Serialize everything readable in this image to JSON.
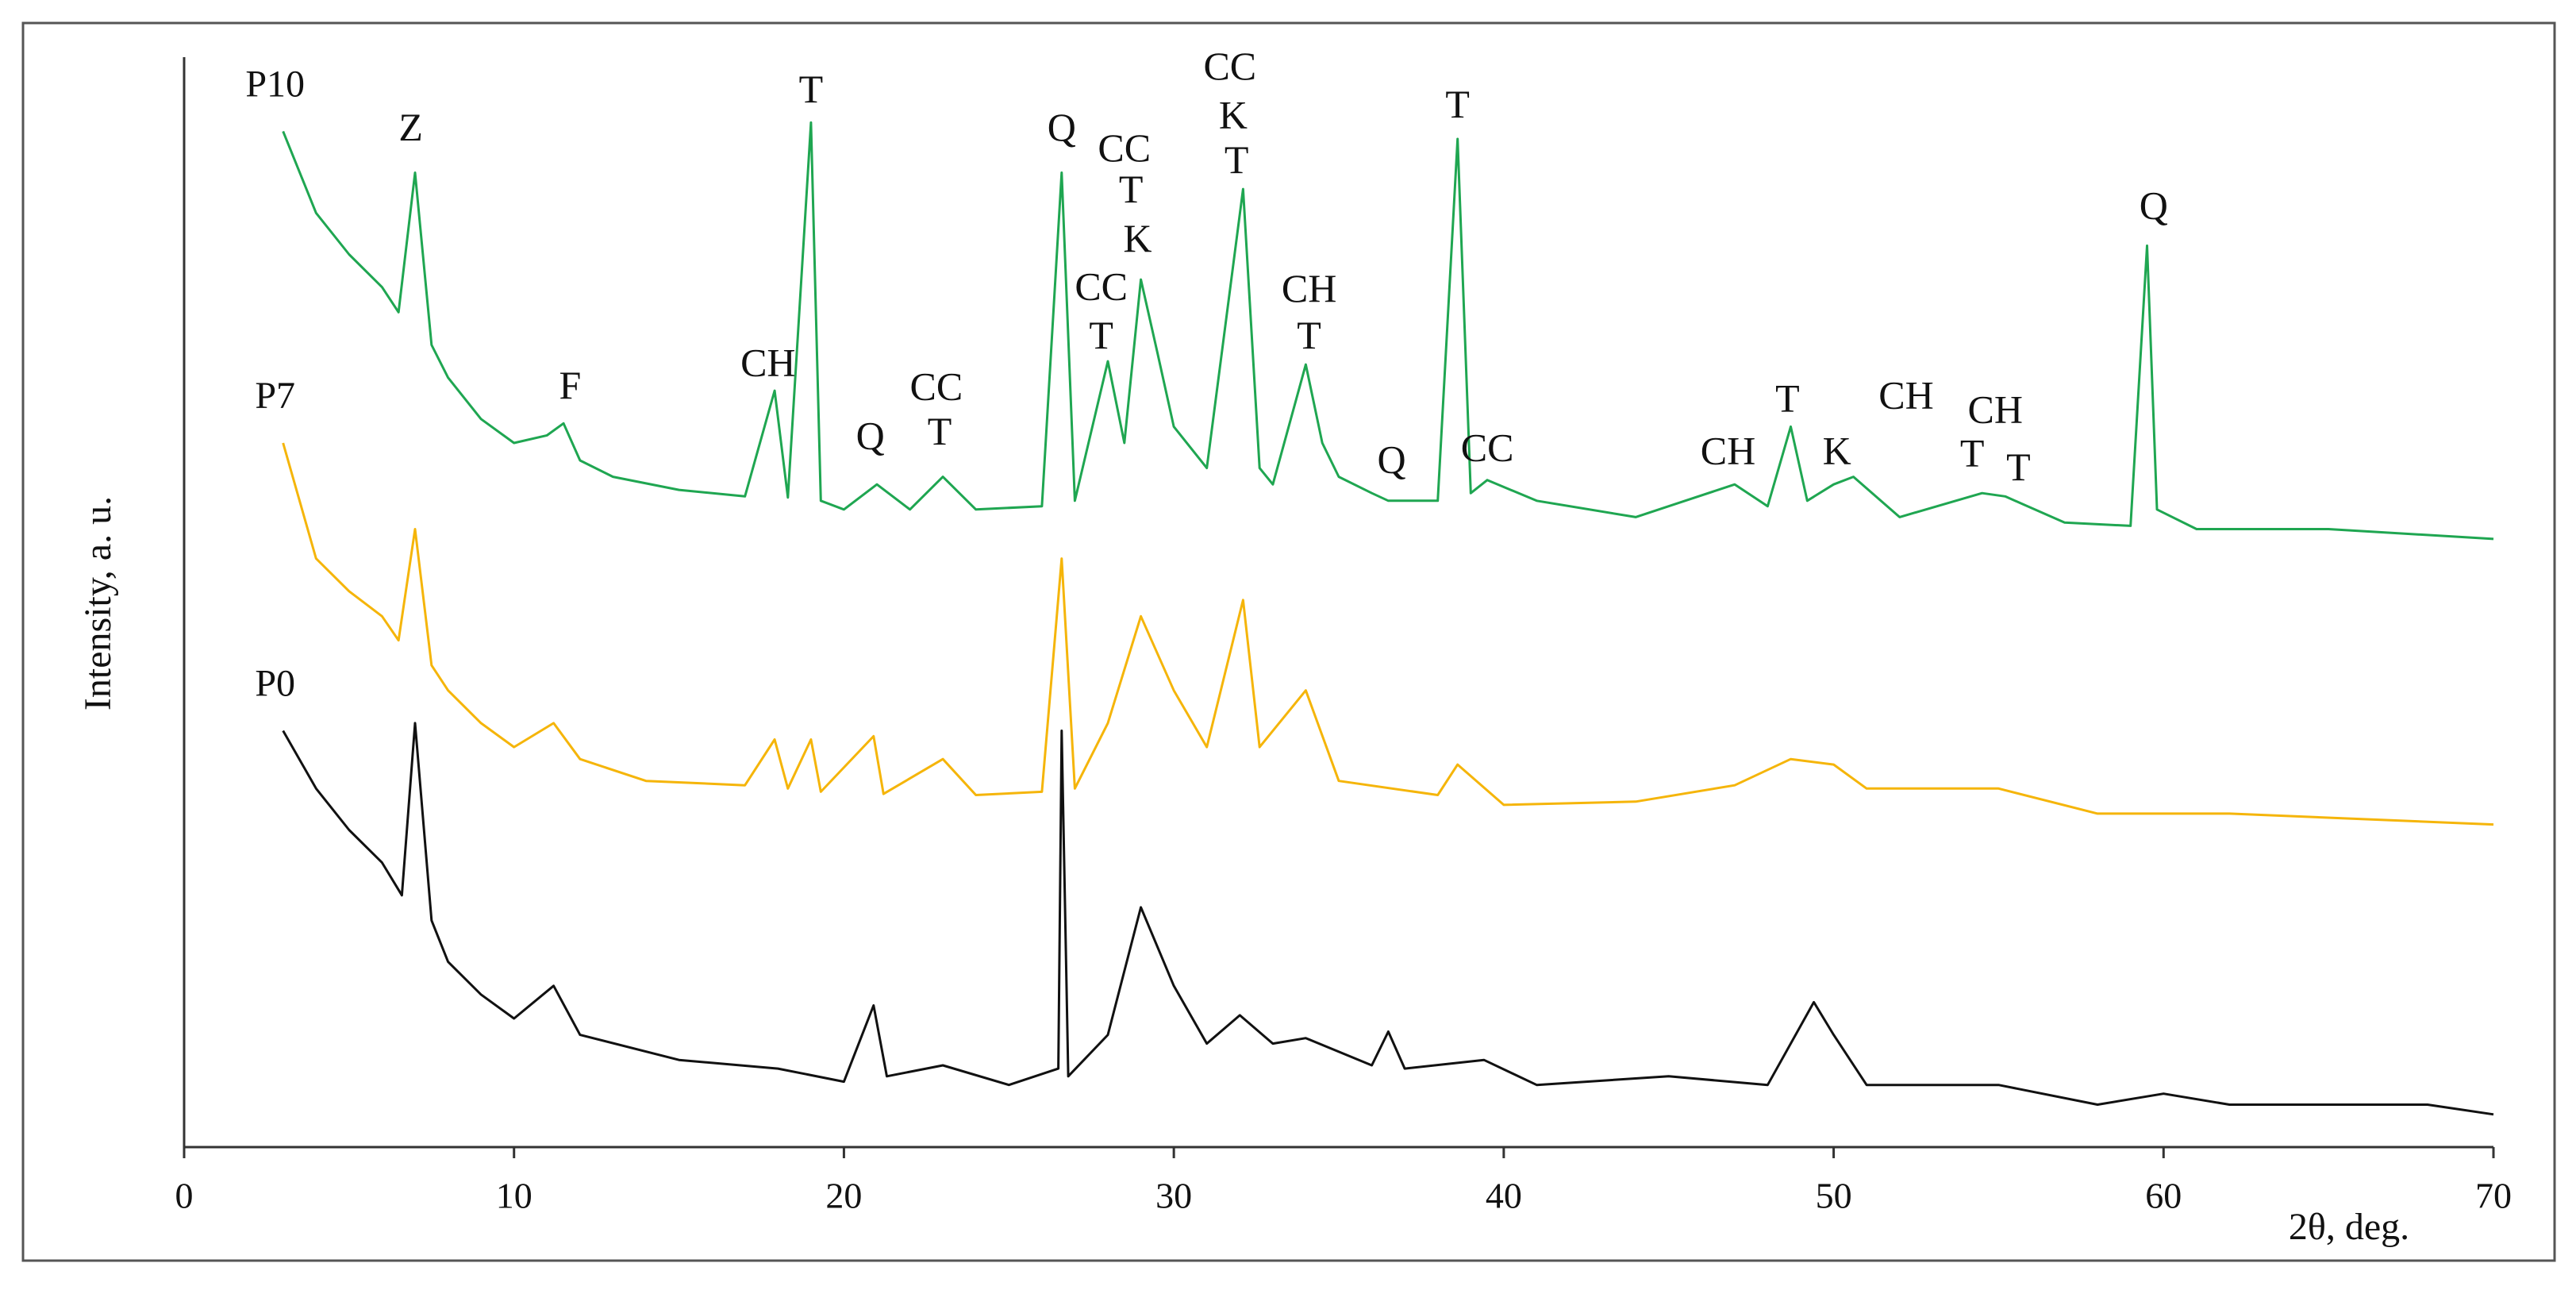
{
  "chart_data": {
    "type": "line",
    "xlabel": "2θ, deg.",
    "ylabel": "Intensity, a. u.",
    "xlim": [
      0,
      70
    ],
    "xticks": [
      0,
      10,
      20,
      30,
      40,
      50,
      60,
      70
    ],
    "ylim": [
      0,
      100
    ],
    "series": [
      {
        "name": "P10",
        "color": "#1fa651",
        "x": [
          3,
          4,
          5,
          6,
          6.5,
          7,
          7.5,
          8,
          9,
          10,
          11,
          11.5,
          12,
          13,
          15,
          17,
          17.9,
          18.3,
          19,
          19.3,
          20,
          21,
          22,
          23,
          24,
          26,
          26.6,
          27,
          28,
          28.5,
          29,
          29.5,
          30,
          31,
          32.1,
          32.6,
          33,
          34,
          34.5,
          35,
          36,
          36.5,
          38,
          38.6,
          39,
          39.5,
          41,
          44,
          47,
          48,
          48.7,
          49.2,
          50,
          50.6,
          52,
          54.5,
          55.2,
          57,
          59,
          59.5,
          59.8,
          61,
          65,
          70
        ],
        "values": [
          93.2,
          85.7,
          81.9,
          78.9,
          76.6,
          89.4,
          73.6,
          70.6,
          66.8,
          64.6,
          65.3,
          66.4,
          63.0,
          61.5,
          60.3,
          59.7,
          69.4,
          59.6,
          94.0,
          59.3,
          58.5,
          60.8,
          58.5,
          61.5,
          58.5,
          58.8,
          89.4,
          59.3,
          72.1,
          64.6,
          79.6,
          72.9,
          66.1,
          62.3,
          87.9,
          62.3,
          60.8,
          71.8,
          64.6,
          61.5,
          60.0,
          59.3,
          59.3,
          92.5,
          60.0,
          61.2,
          59.3,
          57.8,
          60.8,
          58.8,
          66.1,
          59.3,
          60.8,
          61.5,
          57.8,
          60.0,
          59.7,
          57.3,
          57.0,
          82.7,
          58.5,
          56.7,
          56.7,
          55.8
        ]
      },
      {
        "name": "P7",
        "color": "#f5b50a",
        "x": [
          3,
          4,
          5,
          6,
          6.5,
          7,
          7.5,
          8,
          9,
          10,
          11.2,
          12,
          14,
          17,
          17.9,
          18.3,
          19,
          19.3,
          20.9,
          21.2,
          23,
          24,
          26,
          26.6,
          27,
          28,
          29,
          30,
          31,
          32.1,
          32.6,
          34,
          35,
          38,
          38.6,
          40,
          44,
          47,
          48.7,
          50,
          51,
          55,
          58,
          62,
          70
        ],
        "values": [
          64.6,
          54.0,
          51.0,
          48.7,
          46.5,
          56.7,
          44.2,
          41.9,
          38.9,
          36.7,
          38.9,
          35.6,
          33.6,
          33.2,
          37.4,
          32.9,
          37.4,
          32.6,
          37.7,
          32.4,
          35.6,
          32.3,
          32.6,
          54.0,
          32.9,
          38.9,
          48.7,
          41.9,
          36.7,
          50.2,
          36.7,
          41.9,
          33.6,
          32.3,
          35.1,
          31.4,
          31.7,
          33.2,
          35.6,
          35.1,
          32.9,
          32.9,
          30.6,
          30.6,
          29.6
        ]
      },
      {
        "name": "P0",
        "color": "#111111",
        "x": [
          3,
          4,
          5,
          6,
          6.6,
          7,
          7.5,
          8,
          9,
          10,
          11.2,
          12,
          15,
          18,
          20,
          20.9,
          21.3,
          23,
          25,
          26.5,
          26.6,
          26.8,
          28,
          29,
          30,
          31,
          32,
          33,
          34,
          36,
          36.5,
          37,
          39.4,
          41,
          45,
          48,
          49.4,
          50,
          51,
          55,
          58,
          60,
          62,
          68,
          70
        ],
        "values": [
          38.2,
          32.9,
          29.1,
          26.1,
          23.1,
          38.9,
          20.8,
          17.0,
          14.0,
          11.8,
          14.8,
          10.3,
          8.0,
          7.2,
          6.0,
          13.0,
          6.5,
          7.5,
          5.7,
          7.2,
          38.2,
          6.5,
          10.3,
          22.0,
          14.8,
          9.5,
          12.1,
          9.5,
          10.0,
          7.5,
          10.6,
          7.2,
          8.0,
          5.7,
          6.5,
          5.7,
          13.3,
          10.3,
          5.7,
          5.7,
          3.9,
          4.9,
          3.9,
          3.9,
          3.0
        ]
      }
    ],
    "annotations": [
      {
        "text": "Z",
        "x": 6.87,
        "y": 93.2
      },
      {
        "text": "T",
        "x": 19.0,
        "y": 96.7
      },
      {
        "text": "Q",
        "x": 26.6,
        "y": 93.2
      },
      {
        "text": "CC",
        "x": 28.5,
        "y": 91.3
      },
      {
        "text": "T",
        "x": 28.7,
        "y": 87.5
      },
      {
        "text": "K",
        "x": 28.9,
        "y": 83.0
      },
      {
        "text": "CC",
        "x": 31.7,
        "y": 98.8
      },
      {
        "text": "K",
        "x": 31.8,
        "y": 94.3
      },
      {
        "text": "T",
        "x": 31.9,
        "y": 90.2
      },
      {
        "text": "T",
        "x": 38.6,
        "y": 95.3
      },
      {
        "text": "Q",
        "x": 59.7,
        "y": 86.0
      },
      {
        "text": "F",
        "x": 11.7,
        "y": 69.5
      },
      {
        "text": "CH",
        "x": 17.7,
        "y": 71.6
      },
      {
        "text": "CC",
        "x": 27.8,
        "y": 78.6
      },
      {
        "text": "T",
        "x": 27.8,
        "y": 74.1
      },
      {
        "text": "CH",
        "x": 34.1,
        "y": 78.4
      },
      {
        "text": "T",
        "x": 34.1,
        "y": 74.1
      },
      {
        "text": "CC",
        "x": 22.8,
        "y": 69.4
      },
      {
        "text": "T",
        "x": 22.9,
        "y": 65.3
      },
      {
        "text": "Q",
        "x": 20.8,
        "y": 64.9
      },
      {
        "text": "Q",
        "x": 36.6,
        "y": 62.7
      },
      {
        "text": "CC",
        "x": 39.5,
        "y": 63.8
      },
      {
        "text": "CH",
        "x": 46.8,
        "y": 63.5
      },
      {
        "text": "T",
        "x": 48.6,
        "y": 68.3
      },
      {
        "text": "CH",
        "x": 52.2,
        "y": 68.6
      },
      {
        "text": "K",
        "x": 50.1,
        "y": 63.5
      },
      {
        "text": "CH",
        "x": 54.9,
        "y": 67.3
      },
      {
        "text": "T",
        "x": 54.2,
        "y": 63.3
      },
      {
        "text": "T",
        "x": 55.6,
        "y": 62.0
      }
    ]
  }
}
